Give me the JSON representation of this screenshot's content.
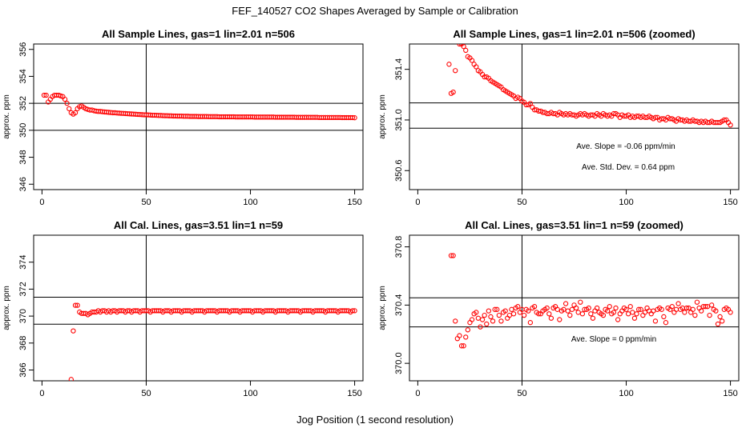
{
  "title": "FEF_140527  CO2 Shapes Averaged by Sample or Calibration",
  "xlabel": "Jog Position (1 second resolution)",
  "chart_data": [
    {
      "type": "scatter",
      "title": "All Sample Lines, gas=1 lin=2.01 n=506",
      "ylabel": "approx. ppm",
      "xlim": [
        -4,
        154
      ],
      "ylim": [
        345.6,
        356.4
      ],
      "xticks": [
        0,
        50,
        100,
        150
      ],
      "yticks": [
        346,
        348,
        350,
        352,
        354,
        356
      ],
      "hlines": [
        350.0,
        352.0
      ],
      "vline": 50,
      "color": "#ff0000",
      "annotations": [],
      "x": [
        1,
        2,
        3,
        4,
        5,
        6,
        7,
        8,
        9,
        10,
        11,
        12,
        13,
        14,
        15,
        16,
        17,
        18,
        19,
        20,
        21,
        22,
        23,
        24,
        25,
        26,
        27,
        28,
        29,
        30,
        31,
        32,
        33,
        34,
        35,
        36,
        37,
        38,
        39,
        40,
        41,
        42,
        43,
        44,
        45,
        46,
        47,
        48,
        49,
        50,
        51,
        52,
        53,
        54,
        55,
        56,
        57,
        58,
        59,
        60,
        61,
        62,
        63,
        64,
        65,
        66,
        67,
        68,
        69,
        70,
        71,
        72,
        73,
        74,
        75,
        76,
        77,
        78,
        79,
        80,
        81,
        82,
        83,
        84,
        85,
        86,
        87,
        88,
        89,
        90,
        91,
        92,
        93,
        94,
        95,
        96,
        97,
        98,
        99,
        100,
        101,
        102,
        103,
        104,
        105,
        106,
        107,
        108,
        109,
        110,
        111,
        112,
        113,
        114,
        115,
        116,
        117,
        118,
        119,
        120,
        121,
        122,
        123,
        124,
        125,
        126,
        127,
        128,
        129,
        130,
        131,
        132,
        133,
        134,
        135,
        136,
        137,
        138,
        139,
        140,
        141,
        142,
        143,
        144,
        145,
        146,
        147,
        148,
        149,
        150
      ],
      "y": [
        352.6,
        352.6,
        352.1,
        352.3,
        352.5,
        352.6,
        352.6,
        352.6,
        352.55,
        352.5,
        352.3,
        352.0,
        351.6,
        351.3,
        351.2,
        351.3,
        351.6,
        351.75,
        351.8,
        351.7,
        351.6,
        351.55,
        351.5,
        351.5,
        351.45,
        351.42,
        351.4,
        351.4,
        351.38,
        351.36,
        351.35,
        351.33,
        351.32,
        351.3,
        351.3,
        351.28,
        351.27,
        351.26,
        351.25,
        351.24,
        351.23,
        351.22,
        351.21,
        351.2,
        351.19,
        351.18,
        351.17,
        351.16,
        351.15,
        351.15,
        351.14,
        351.13,
        351.12,
        351.12,
        351.11,
        351.1,
        351.1,
        351.09,
        351.08,
        351.08,
        351.07,
        351.07,
        351.06,
        351.06,
        351.05,
        351.05,
        351.05,
        351.04,
        351.04,
        351.04,
        351.03,
        351.03,
        351.03,
        351.03,
        351.02,
        351.02,
        351.02,
        351.02,
        351.02,
        351.01,
        351.01,
        351.01,
        351.01,
        351.01,
        351.0,
        351.0,
        351.0,
        351.0,
        351.0,
        351.0,
        351.0,
        351.0,
        350.99,
        350.99,
        350.99,
        350.99,
        350.99,
        350.99,
        350.99,
        350.99,
        350.99,
        350.98,
        350.98,
        350.98,
        350.98,
        350.98,
        350.98,
        350.98,
        350.98,
        350.98,
        350.98,
        350.97,
        350.97,
        350.97,
        350.97,
        350.97,
        350.97,
        350.97,
        350.97,
        350.97,
        350.97,
        350.96,
        350.96,
        350.96,
        350.96,
        350.96,
        350.96,
        350.96,
        350.96,
        350.96,
        350.96,
        350.96,
        350.95,
        350.95,
        350.95,
        350.95,
        350.95,
        350.95,
        350.95,
        350.95,
        350.95,
        350.95,
        350.95,
        350.94,
        350.94,
        350.94,
        350.94,
        350.94,
        350.94,
        350.93
      ]
    },
    {
      "type": "scatter",
      "title": "All Sample Lines, gas=1 lin=2.01 n=506 (zoomed)",
      "ylabel": "approx. ppm",
      "xlim": [
        -4,
        154
      ],
      "ylim": [
        350.45,
        351.6
      ],
      "xticks": [
        0,
        50,
        100,
        150
      ],
      "yticks": [
        350.6,
        351.0,
        351.4
      ],
      "hlines": [
        350.935,
        351.135
      ],
      "vline": 50,
      "color": "#ff0000",
      "annotations": [
        "Ave. Slope =  -0.06  ppm/min",
        "Ave. Std. Dev. =  0.64  ppm"
      ],
      "x": [
        15,
        16,
        17,
        18,
        20,
        21,
        22,
        23,
        24,
        25,
        26,
        27,
        28,
        29,
        30,
        31,
        32,
        33,
        34,
        35,
        36,
        37,
        38,
        39,
        40,
        41,
        42,
        43,
        44,
        45,
        46,
        47,
        48,
        49,
        50,
        51,
        52,
        53,
        54,
        55,
        56,
        57,
        58,
        59,
        60,
        61,
        62,
        63,
        64,
        65,
        66,
        67,
        68,
        69,
        70,
        71,
        72,
        73,
        74,
        75,
        76,
        77,
        78,
        79,
        80,
        81,
        82,
        83,
        84,
        85,
        86,
        87,
        88,
        89,
        90,
        91,
        92,
        93,
        94,
        95,
        96,
        97,
        98,
        99,
        100,
        101,
        102,
        103,
        104,
        105,
        106,
        107,
        108,
        109,
        110,
        111,
        112,
        113,
        114,
        115,
        116,
        117,
        118,
        119,
        120,
        121,
        122,
        123,
        124,
        125,
        126,
        127,
        128,
        129,
        130,
        131,
        132,
        133,
        134,
        135,
        136,
        137,
        138,
        139,
        140,
        141,
        142,
        143,
        144,
        145,
        146,
        147,
        148,
        149,
        150
      ],
      "y": [
        351.44,
        351.21,
        351.22,
        351.39,
        351.6,
        351.6,
        351.58,
        351.55,
        351.5,
        351.49,
        351.47,
        351.44,
        351.42,
        351.39,
        351.38,
        351.36,
        351.34,
        351.34,
        351.33,
        351.31,
        351.3,
        351.29,
        351.28,
        351.27,
        351.26,
        351.24,
        351.23,
        351.22,
        351.21,
        351.2,
        351.19,
        351.17,
        351.18,
        351.17,
        351.15,
        351.14,
        351.12,
        351.12,
        351.13,
        351.1,
        351.08,
        351.08,
        351.07,
        351.07,
        351.06,
        351.06,
        351.05,
        351.05,
        351.06,
        351.05,
        351.05,
        351.04,
        351.06,
        351.05,
        351.04,
        351.05,
        351.04,
        351.05,
        351.04,
        351.04,
        351.03,
        351.04,
        351.05,
        351.04,
        351.05,
        351.04,
        351.03,
        351.04,
        351.04,
        351.03,
        351.05,
        351.04,
        351.03,
        351.05,
        351.04,
        351.03,
        351.04,
        351.03,
        351.05,
        351.05,
        351.04,
        351.02,
        351.04,
        351.03,
        351.03,
        351.04,
        351.02,
        351.03,
        351.02,
        351.03,
        351.03,
        351.02,
        351.03,
        351.02,
        351.02,
        351.03,
        351.02,
        351.01,
        351.02,
        351.02,
        351.0,
        351.01,
        351.01,
        351.0,
        351.02,
        351.01,
        351.01,
        351.0,
        350.99,
        351.01,
        351.0,
        351.0,
        350.99,
        351.0,
        350.99,
        350.99,
        351.0,
        350.99,
        350.99,
        350.98,
        350.99,
        350.98,
        350.99,
        350.98,
        350.98,
        350.99,
        350.98,
        350.98,
        350.98,
        350.98,
        350.99,
        351.0,
        351.0,
        350.98,
        350.96
      ]
    },
    {
      "type": "scatter",
      "title": "All Cal. Lines, gas=3.51 lin=1 n=59",
      "ylabel": "approx. ppm",
      "xlim": [
        -4,
        154
      ],
      "ylim": [
        365.2,
        376.0
      ],
      "xticks": [
        0,
        50,
        100,
        150
      ],
      "yticks": [
        366,
        368,
        370,
        372,
        374
      ],
      "hlines": [
        369.4,
        371.4
      ],
      "vline": 50,
      "color": "#ff0000",
      "annotations": [],
      "x": [
        14,
        15,
        16,
        17,
        18,
        19,
        20,
        21,
        22,
        23,
        24,
        25,
        26,
        27,
        28,
        29,
        30,
        31,
        32,
        33,
        34,
        35,
        36,
        37,
        38,
        39,
        40,
        41,
        42,
        43,
        44,
        45,
        46,
        47,
        48,
        49,
        50,
        51,
        52,
        53,
        54,
        55,
        56,
        57,
        58,
        59,
        60,
        61,
        62,
        63,
        64,
        65,
        66,
        67,
        68,
        69,
        70,
        71,
        72,
        73,
        74,
        75,
        76,
        77,
        78,
        79,
        80,
        81,
        82,
        83,
        84,
        85,
        86,
        87,
        88,
        89,
        90,
        91,
        92,
        93,
        94,
        95,
        96,
        97,
        98,
        99,
        100,
        101,
        102,
        103,
        104,
        105,
        106,
        107,
        108,
        109,
        110,
        111,
        112,
        113,
        114,
        115,
        116,
        117,
        118,
        119,
        120,
        121,
        122,
        123,
        124,
        125,
        126,
        127,
        128,
        129,
        130,
        131,
        132,
        133,
        134,
        135,
        136,
        137,
        138,
        139,
        140,
        141,
        142,
        143,
        144,
        145,
        146,
        147,
        148,
        149,
        150
      ],
      "y": [
        365.3,
        368.9,
        370.8,
        370.8,
        370.3,
        370.2,
        370.2,
        370.2,
        370.1,
        370.2,
        370.3,
        370.3,
        370.3,
        370.4,
        370.3,
        370.4,
        370.4,
        370.3,
        370.4,
        370.3,
        370.4,
        370.4,
        370.3,
        370.4,
        370.4,
        370.4,
        370.3,
        370.4,
        370.4,
        370.3,
        370.4,
        370.4,
        370.4,
        370.3,
        370.4,
        370.4,
        370.4,
        370.4,
        370.3,
        370.4,
        370.4,
        370.4,
        370.4,
        370.4,
        370.3,
        370.4,
        370.4,
        370.4,
        370.3,
        370.4,
        370.4,
        370.4,
        370.4,
        370.3,
        370.4,
        370.4,
        370.4,
        370.4,
        370.3,
        370.4,
        370.4,
        370.4,
        370.4,
        370.4,
        370.3,
        370.4,
        370.4,
        370.4,
        370.4,
        370.4,
        370.3,
        370.4,
        370.4,
        370.4,
        370.4,
        370.4,
        370.3,
        370.4,
        370.4,
        370.4,
        370.4,
        370.3,
        370.4,
        370.4,
        370.4,
        370.4,
        370.4,
        370.3,
        370.4,
        370.4,
        370.4,
        370.4,
        370.3,
        370.4,
        370.4,
        370.4,
        370.4,
        370.4,
        370.3,
        370.4,
        370.4,
        370.4,
        370.4,
        370.4,
        370.3,
        370.4,
        370.4,
        370.4,
        370.4,
        370.4,
        370.3,
        370.4,
        370.4,
        370.4,
        370.4,
        370.4,
        370.3,
        370.4,
        370.4,
        370.4,
        370.4,
        370.4,
        370.3,
        370.4,
        370.4,
        370.4,
        370.4,
        370.4,
        370.3,
        370.4,
        370.4,
        370.4,
        370.4,
        370.4,
        370.3,
        370.4,
        370.4
      ]
    },
    {
      "type": "scatter",
      "title": "All Cal. Lines, gas=3.51 lin=1 n=59 (zoomed)",
      "ylabel": "approx. ppm",
      "xlim": [
        -4,
        154
      ],
      "ylim": [
        369.88,
        370.88
      ],
      "xticks": [
        0,
        50,
        100,
        150
      ],
      "yticks": [
        370.0,
        370.4,
        370.8
      ],
      "hlines": [
        370.25,
        370.45
      ],
      "vline": 50,
      "color": "#ff0000",
      "annotations": [
        "Ave. Slope =  0  ppm/min"
      ],
      "x": [
        16,
        17,
        18,
        19,
        20,
        21,
        22,
        23,
        24,
        25,
        26,
        27,
        28,
        29,
        30,
        31,
        32,
        33,
        34,
        35,
        36,
        37,
        38,
        39,
        40,
        41,
        42,
        43,
        44,
        45,
        46,
        47,
        48,
        49,
        50,
        51,
        52,
        53,
        54,
        55,
        56,
        57,
        58,
        59,
        60,
        61,
        62,
        63,
        64,
        65,
        66,
        67,
        68,
        69,
        70,
        71,
        72,
        73,
        74,
        75,
        76,
        77,
        78,
        79,
        80,
        81,
        82,
        83,
        84,
        85,
        86,
        87,
        88,
        89,
        90,
        91,
        92,
        93,
        94,
        95,
        96,
        97,
        98,
        99,
        100,
        101,
        102,
        103,
        104,
        105,
        106,
        107,
        108,
        109,
        110,
        111,
        112,
        113,
        114,
        115,
        116,
        117,
        118,
        119,
        120,
        121,
        122,
        123,
        124,
        125,
        126,
        127,
        128,
        129,
        130,
        131,
        132,
        133,
        134,
        135,
        136,
        137,
        138,
        139,
        140,
        141,
        142,
        143,
        144,
        145,
        146,
        147,
        148,
        149,
        150
      ],
      "y": [
        370.74,
        370.74,
        370.29,
        370.17,
        370.19,
        370.12,
        370.12,
        370.18,
        370.23,
        370.28,
        370.3,
        370.34,
        370.35,
        370.31,
        370.25,
        370.3,
        370.33,
        370.27,
        370.36,
        370.32,
        370.29,
        370.37,
        370.37,
        370.33,
        370.29,
        370.35,
        370.36,
        370.31,
        370.33,
        370.37,
        370.34,
        370.38,
        370.39,
        370.35,
        370.37,
        370.33,
        370.37,
        370.36,
        370.28,
        370.38,
        370.39,
        370.35,
        370.34,
        370.34,
        370.36,
        370.37,
        370.38,
        370.34,
        370.31,
        370.38,
        370.39,
        370.37,
        370.3,
        370.36,
        370.37,
        370.41,
        370.36,
        370.33,
        370.37,
        370.4,
        370.38,
        370.35,
        370.42,
        370.34,
        370.37,
        370.37,
        370.38,
        370.34,
        370.31,
        370.36,
        370.38,
        370.35,
        370.34,
        370.33,
        370.37,
        370.36,
        370.39,
        370.34,
        370.35,
        370.38,
        370.3,
        370.34,
        370.36,
        370.38,
        370.37,
        370.34,
        370.39,
        370.35,
        370.31,
        370.34,
        370.37,
        370.37,
        370.33,
        370.35,
        370.38,
        370.36,
        370.34,
        370.36,
        370.29,
        370.37,
        370.38,
        370.37,
        370.32,
        370.28,
        370.38,
        370.37,
        370.39,
        370.35,
        370.37,
        370.41,
        370.37,
        370.38,
        370.35,
        370.38,
        370.38,
        370.35,
        370.37,
        370.33,
        370.42,
        370.38,
        370.36,
        370.39,
        370.39,
        370.39,
        370.33,
        370.4,
        370.37,
        370.36,
        370.27,
        370.32,
        370.29,
        370.37,
        370.38,
        370.37,
        370.35
      ]
    }
  ]
}
